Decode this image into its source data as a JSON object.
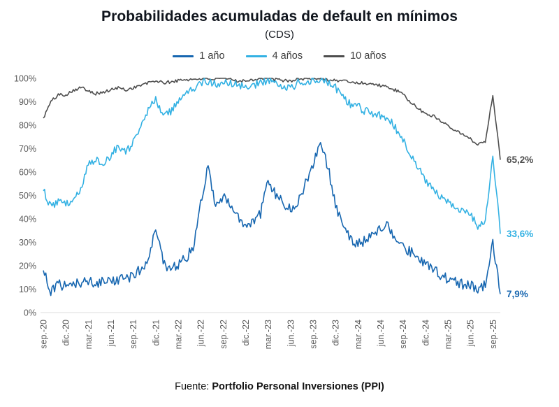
{
  "chart_data": {
    "type": "line",
    "title": "Probabilidades acumuladas de default en mínimos",
    "subtitle": "(CDS)",
    "xlabel": "",
    "ylabel": "",
    "ylim": [
      0,
      100
    ],
    "grid": false,
    "legend_position": "top",
    "axis_label_color": "#595959",
    "y_ticks": [
      0,
      10,
      20,
      30,
      40,
      50,
      60,
      70,
      80,
      90,
      100
    ],
    "y_tick_labels": [
      "0%",
      "10%",
      "20%",
      "30%",
      "40%",
      "50%",
      "60%",
      "70%",
      "80%",
      "90%",
      "100%"
    ],
    "x_tick_labels": [
      "sep.-20",
      "dic.-20",
      "mar.-21",
      "jun.-21",
      "sep.-21",
      "dic.-21",
      "mar.-22",
      "jun.-22",
      "sep.-22",
      "dic.-22",
      "mar.-23",
      "jun.-23",
      "sep.-23",
      "dic.-23",
      "mar.-24",
      "jun.-24",
      "sep.-24",
      "dic.-24",
      "mar.-25",
      "jun.-25",
      "sep.-25"
    ],
    "x_tick_positions": [
      0,
      3,
      6,
      9,
      12,
      15,
      18,
      21,
      24,
      27,
      30,
      33,
      36,
      39,
      42,
      45,
      48,
      51,
      54,
      57,
      60
    ],
    "series": [
      {
        "name": "1 año",
        "slug": "1-ano",
        "color": "#1666b0",
        "noise": 2.2,
        "end_label": "7,9%",
        "end_value": 7.9,
        "values": [
          18,
          8.5,
          12,
          11,
          12,
          12.5,
          13,
          12.5,
          13,
          13.5,
          14,
          14.5,
          16,
          18.5,
          21,
          37,
          21,
          19,
          20.5,
          23,
          28,
          47,
          63,
          44,
          50,
          45,
          40,
          36,
          38,
          42,
          57,
          50,
          47,
          44,
          48,
          55,
          63,
          72,
          62,
          46,
          37,
          31,
          29,
          31,
          33,
          36,
          37,
          32,
          28,
          26,
          24,
          21,
          19,
          16,
          14.5,
          13,
          12,
          11.5,
          10.5,
          12,
          30,
          7.9
        ]
      },
      {
        "name": "4 años",
        "slug": "4-anos",
        "color": "#33b1e3",
        "noise": 1.8,
        "end_label": "33,6%",
        "end_value": 33.6,
        "values": [
          52,
          45,
          48,
          46,
          49,
          53,
          63,
          66,
          64,
          67,
          71,
          68,
          73,
          79,
          86,
          91,
          84,
          86,
          90,
          93,
          96,
          98,
          99,
          97,
          99,
          98,
          97,
          96,
          97,
          98,
          99,
          98,
          97,
          96,
          98,
          99,
          99,
          99,
          98,
          96,
          92,
          89,
          88,
          86,
          85,
          84,
          83,
          79,
          74,
          67,
          62,
          57,
          52,
          50,
          47,
          45,
          44,
          42,
          37,
          38,
          68,
          33.6
        ]
      },
      {
        "name": "10 años",
        "slug": "10-anos",
        "color": "#4d4d4d",
        "noise": 0.7,
        "end_label": "65,2%",
        "end_value": 65.2,
        "values": [
          83,
          90,
          93,
          93,
          95,
          96,
          95,
          93.5,
          94,
          95,
          96,
          95,
          96,
          97,
          98,
          99,
          98,
          98.5,
          99,
          99.5,
          99.5,
          100,
          100,
          99.5,
          100,
          99.5,
          99,
          99,
          99.5,
          100,
          100,
          99.5,
          99,
          99,
          99.5,
          100,
          100,
          100,
          99.5,
          99,
          99,
          98.5,
          98,
          98,
          97.5,
          97,
          96,
          95,
          93,
          90,
          87,
          85,
          84,
          82,
          80,
          78,
          76,
          74,
          72,
          73,
          93,
          65.2
        ]
      }
    ]
  },
  "source": {
    "prefix": "Fuente: ",
    "name": "Portfolio Personal Inversiones (PPI)"
  }
}
